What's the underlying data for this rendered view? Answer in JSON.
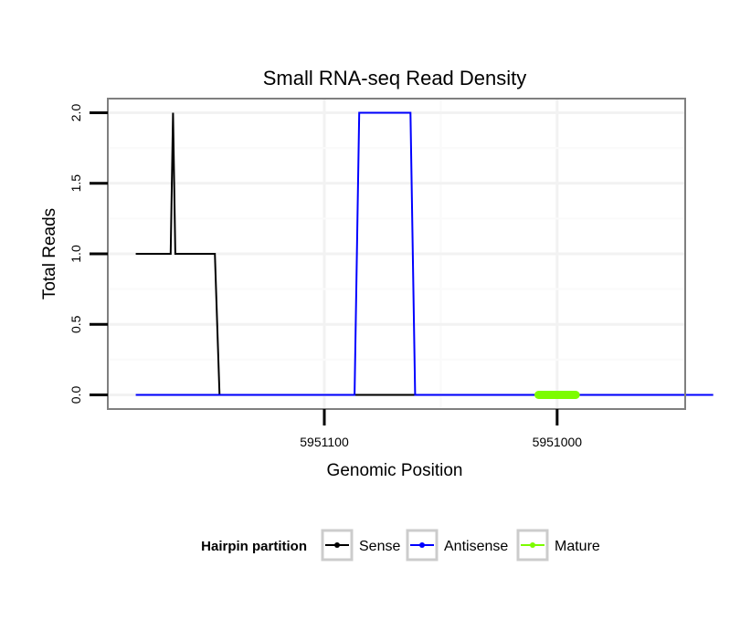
{
  "chart_data": {
    "type": "line",
    "title": "Small RNA-seq Read Density",
    "xlabel": "Genomic Position",
    "ylabel": "Total Reads",
    "xlim": [
      5951193,
      5950945
    ],
    "ylim": [
      -0.1,
      2.1
    ],
    "x_reversed": true,
    "x_ticks": [
      5951100,
      5951000
    ],
    "x_tick_labels": [
      "5951100",
      "5951000"
    ],
    "y_ticks": [
      0.0,
      0.5,
      1.0,
      1.5,
      2.0
    ],
    "y_tick_labels": [
      "0.0",
      "0.5",
      "1.0",
      "1.5",
      "2.0"
    ],
    "grid": true,
    "legend": {
      "title": "Hairpin partition",
      "position": "bottom",
      "entries": [
        "Sense",
        "Antisense",
        "Mature"
      ]
    },
    "series": [
      {
        "name": "Sense",
        "color": "#000000",
        "x": [
          5951181,
          5951166,
          5951165,
          5951164,
          5951147,
          5951145,
          5950933
        ],
        "y": [
          1,
          1,
          2,
          1,
          1,
          0,
          0
        ]
      },
      {
        "name": "Antisense",
        "color": "#0000ff",
        "x": [
          5951181,
          5951087,
          5951085,
          5951063,
          5951061,
          5950933
        ],
        "y": [
          0,
          0,
          2,
          2,
          0,
          0
        ]
      },
      {
        "name": "Mature",
        "color": "#7cfc00",
        "x": [
          5951008,
          5950992
        ],
        "y": [
          0,
          0
        ]
      }
    ]
  }
}
